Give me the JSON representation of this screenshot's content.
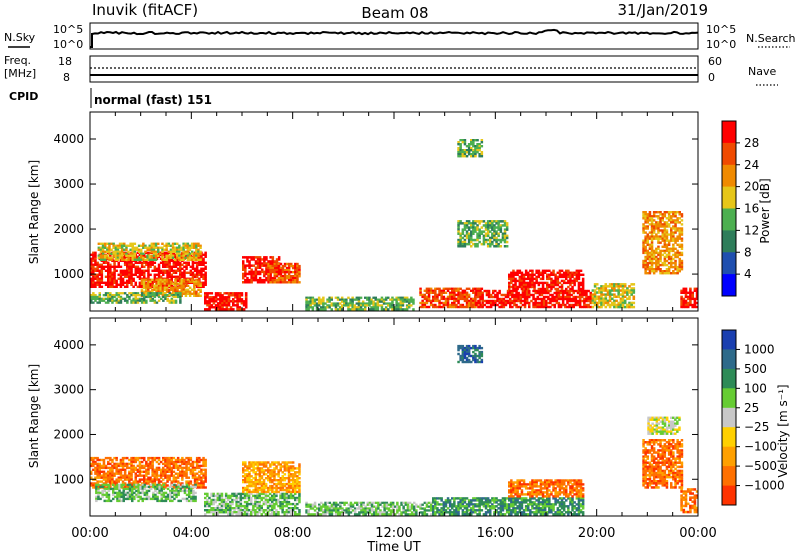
{
  "header": {
    "station": "Inuvik (fitACF)",
    "beam": "Beam 08",
    "date": "31/Jan/2019"
  },
  "sky_panel": {
    "left_label": "N.Sky",
    "right_label": "N.Search",
    "left_ticks": [
      "10^5",
      "10^0"
    ],
    "right_ticks": [
      "10^5",
      "10^0"
    ]
  },
  "freq_panel": {
    "left_label_1": "Freq.",
    "left_label_2": "[MHz]",
    "left_ticks": [
      "18",
      "8"
    ],
    "right_label": "Nave",
    "right_ticks": [
      "60",
      "0"
    ]
  },
  "cpid_panel": {
    "label": "CPID",
    "value": "normal (fast) 151"
  },
  "colors": {
    "power_scale": [
      "#0000ff",
      "#1f4faf",
      "#2e7d5a",
      "#4caf50",
      "#e6c619",
      "#f08a00",
      "#f04a00",
      "#ff0000"
    ],
    "velocity_scale": [
      "#1a3fb0",
      "#2e6a8a",
      "#2e8b57",
      "#66cc33",
      "#c8c8c8",
      "#ffd000",
      "#ffa000",
      "#ff7000",
      "#ff3300",
      "#ff0000"
    ]
  },
  "chart_data": [
    {
      "type": "heatmap",
      "panel": "power",
      "ylabel": "Slant Range [km]",
      "yticks": [
        1000,
        2000,
        3000,
        4000
      ],
      "ylim": [
        180,
        4600
      ],
      "xlim": [
        0,
        24
      ],
      "colorbar_label": "Power [dB]",
      "colorbar_ticks": [
        "4",
        "8",
        "12",
        "16",
        "20",
        "24",
        "28"
      ],
      "regions": [
        {
          "t0": 0.0,
          "t1": 4.6,
          "r0": 700,
          "r1": 1500,
          "c": 7
        },
        {
          "t0": 0.3,
          "t1": 4.4,
          "r0": 1300,
          "r1": 1700,
          "c": 4
        },
        {
          "t0": 2.0,
          "t1": 4.4,
          "r0": 500,
          "r1": 900,
          "c": 5
        },
        {
          "t0": 0.0,
          "t1": 3.6,
          "r0": 350,
          "r1": 600,
          "c": 3
        },
        {
          "t0": 4.5,
          "t1": 6.2,
          "r0": 200,
          "r1": 600,
          "c": 7
        },
        {
          "t0": 6.0,
          "t1": 7.5,
          "r0": 800,
          "r1": 1400,
          "c": 7
        },
        {
          "t0": 7.0,
          "t1": 8.3,
          "r0": 800,
          "r1": 1250,
          "c": 6
        },
        {
          "t0": 8.5,
          "t1": 12.8,
          "r0": 200,
          "r1": 500,
          "c": 3
        },
        {
          "t0": 13.0,
          "t1": 15.5,
          "r0": 250,
          "r1": 700,
          "c": 6
        },
        {
          "t0": 15.2,
          "t1": 19.8,
          "r0": 250,
          "r1": 650,
          "c": 7
        },
        {
          "t0": 16.5,
          "t1": 19.5,
          "r0": 650,
          "r1": 1100,
          "c": 7
        },
        {
          "t0": 19.8,
          "t1": 21.5,
          "r0": 250,
          "r1": 800,
          "c": 4
        },
        {
          "t0": 21.8,
          "t1": 23.4,
          "r0": 1000,
          "r1": 2400,
          "c": 5
        },
        {
          "t0": 23.3,
          "t1": 24.0,
          "r0": 250,
          "r1": 700,
          "c": 7
        },
        {
          "t0": 14.5,
          "t1": 16.5,
          "r0": 1600,
          "r1": 2200,
          "c": 3
        },
        {
          "t0": 14.5,
          "t1": 15.5,
          "r0": 3600,
          "r1": 4000,
          "c": 3
        }
      ]
    },
    {
      "type": "heatmap",
      "panel": "velocity",
      "ylabel": "Slant Range [km]",
      "xlabel": "Time UT",
      "yticks": [
        1000,
        2000,
        3000,
        4000
      ],
      "ylim": [
        180,
        4600
      ],
      "xlim": [
        0,
        24
      ],
      "xticks": [
        "00:00",
        "04:00",
        "08:00",
        "12:00",
        "16:00",
        "20:00",
        "00:00"
      ],
      "colorbar_label": "Velocity [m s⁻¹]",
      "colorbar_ticks": [
        "1000",
        "500",
        "100",
        "25",
        "−25",
        "−100",
        "−500",
        "−1000"
      ],
      "regions": [
        {
          "t0": 0.0,
          "t1": 4.6,
          "r0": 800,
          "r1": 1500,
          "c": 7
        },
        {
          "t0": 0.2,
          "t1": 4.2,
          "r0": 500,
          "r1": 900,
          "c": 3
        },
        {
          "t0": 4.5,
          "t1": 8.3,
          "r0": 200,
          "r1": 700,
          "c": 3
        },
        {
          "t0": 6.0,
          "t1": 8.3,
          "r0": 700,
          "r1": 1400,
          "c": 6
        },
        {
          "t0": 8.5,
          "t1": 13.5,
          "r0": 200,
          "r1": 500,
          "c": 3
        },
        {
          "t0": 13.5,
          "t1": 19.5,
          "r0": 200,
          "r1": 600,
          "c": 2
        },
        {
          "t0": 16.5,
          "t1": 19.5,
          "r0": 600,
          "r1": 1000,
          "c": 7
        },
        {
          "t0": 21.8,
          "t1": 23.4,
          "r0": 800,
          "r1": 1900,
          "c": 7
        },
        {
          "t0": 22.0,
          "t1": 23.3,
          "r0": 2000,
          "r1": 2400,
          "c": 4
        },
        {
          "t0": 23.3,
          "t1": 24.0,
          "r0": 250,
          "r1": 800,
          "c": 7
        },
        {
          "t0": 14.5,
          "t1": 15.5,
          "r0": 3600,
          "r1": 4000,
          "c": 1
        }
      ]
    }
  ]
}
